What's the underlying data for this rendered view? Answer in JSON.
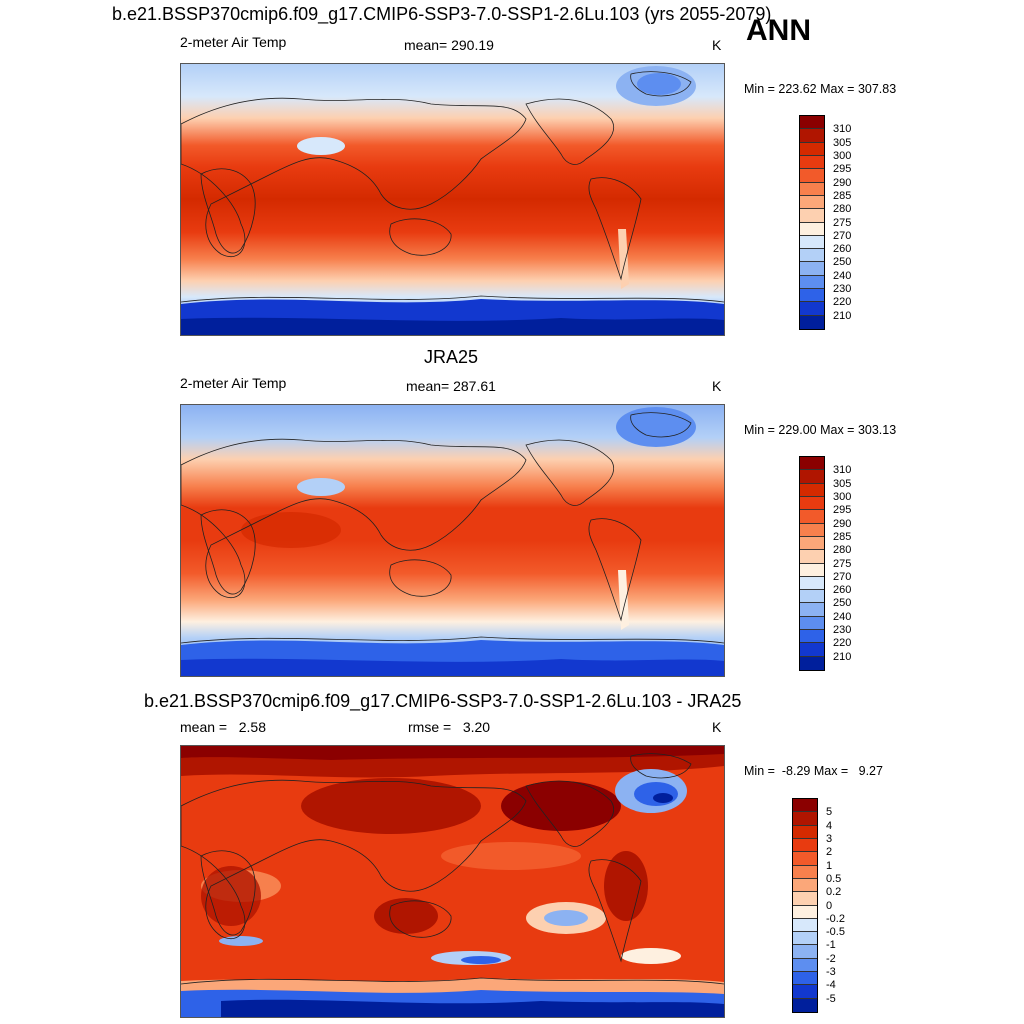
{
  "header": {
    "title": "b.e21.BSSP370cmip6.f09_g17.CMIP6-SSP3-7.0-SSP1-2.6Lu.103 (yrs 2055-2079)",
    "season": "ANN"
  },
  "panels": [
    {
      "variable": "2-meter Air Temp",
      "mean": "mean= 290.19",
      "units": "K",
      "minmax": "Min = 223.62 Max = 307.83",
      "colorbar_levels": [
        "310",
        "305",
        "300",
        "295",
        "290",
        "285",
        "280",
        "275",
        "270",
        "260",
        "250",
        "240",
        "230",
        "220",
        "210"
      ],
      "colorbar_colors": [
        "#8b0000",
        "#b01500",
        "#d42a00",
        "#e83b10",
        "#f25a2a",
        "#f7804d",
        "#fba779",
        "#fdd0b0",
        "#fef0e0",
        "#d7e8fb",
        "#b3d0f7",
        "#8cb2f2",
        "#5d8ef0",
        "#2e62e8",
        "#1238cf",
        "#001f9c"
      ],
      "map_kind": "absolute"
    },
    {
      "title": "JRA25",
      "variable": "2-meter Air Temp",
      "mean": "mean= 287.61",
      "units": "K",
      "minmax": "Min = 229.00 Max = 303.13",
      "colorbar_levels": [
        "310",
        "305",
        "300",
        "295",
        "290",
        "285",
        "280",
        "275",
        "270",
        "260",
        "250",
        "240",
        "230",
        "220",
        "210"
      ],
      "colorbar_colors": [
        "#8b0000",
        "#b01500",
        "#d42a00",
        "#e83b10",
        "#f25a2a",
        "#f7804d",
        "#fba779",
        "#fdd0b0",
        "#fef0e0",
        "#d7e8fb",
        "#b3d0f7",
        "#8cb2f2",
        "#5d8ef0",
        "#2e62e8",
        "#1238cf",
        "#001f9c"
      ],
      "map_kind": "absolute"
    },
    {
      "title": "b.e21.BSSP370cmip6.f09_g17.CMIP6-SSP3-7.0-SSP1-2.6Lu.103 - JRA25",
      "mean": "mean =   2.58",
      "rmse": "rmse =   3.20",
      "units": "K",
      "minmax": "Min =  -8.29 Max =   9.27",
      "colorbar_levels": [
        "5",
        "4",
        "3",
        "2",
        "1",
        "0.5",
        "0.2",
        "0",
        "-0.2",
        "-0.5",
        "-1",
        "-2",
        "-3",
        "-4",
        "-5"
      ],
      "colorbar_colors": [
        "#8b0000",
        "#b01500",
        "#d42a00",
        "#e83b10",
        "#f25a2a",
        "#f7804d",
        "#fba779",
        "#fdd0b0",
        "#fef0e0",
        "#d7e8fb",
        "#b3d0f7",
        "#8cb2f2",
        "#5d8ef0",
        "#2e62e8",
        "#1238cf",
        "#001f9c"
      ],
      "map_kind": "difference"
    }
  ]
}
